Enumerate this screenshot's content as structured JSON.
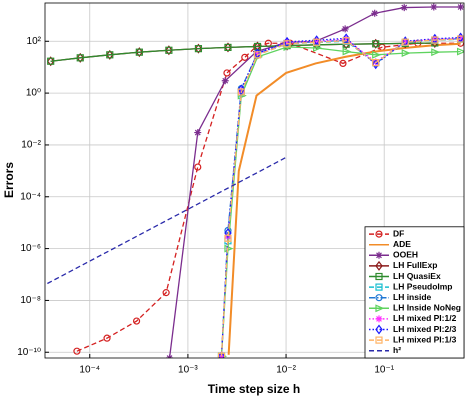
{
  "chart_data": {
    "type": "line",
    "x_label": "Time step size h",
    "y_label": "Errors",
    "x_scale": "log",
    "y_scale": "log",
    "grid": true,
    "legend_position": "lower right",
    "xlim": [
      3.5e-05,
      0.65
    ],
    "ylim": [
      6e-11,
      3000
    ],
    "xticks": [
      {
        "value": 0.0001,
        "label": "10⁻⁴"
      },
      {
        "value": 0.001,
        "label": "10⁻³"
      },
      {
        "value": 0.01,
        "label": "10⁻²"
      },
      {
        "value": 0.1,
        "label": "10⁻¹"
      }
    ],
    "yticks": [
      {
        "value": 1e-10,
        "label": "10⁻¹⁰"
      },
      {
        "value": 1e-08,
        "label": "10⁻⁸"
      },
      {
        "value": 1e-06,
        "label": "10⁻⁶"
      },
      {
        "value": 0.0001,
        "label": "10⁻⁴"
      },
      {
        "value": 0.01,
        "label": "10⁻²"
      },
      {
        "value": 1,
        "label": "10⁰"
      },
      {
        "value": 100,
        "label": "10²"
      }
    ],
    "series": [
      {
        "name": "DF",
        "color": "#d42020",
        "dash": "dashed",
        "marker": "circle",
        "x": [
          7.4e-05,
          0.00015,
          0.0003,
          0.0006,
          0.00126,
          0.0025,
          0.0038,
          0.005,
          0.0066,
          0.011,
          0.038,
          0.095,
          0.22,
          0.6
        ],
        "values": [
          1.1e-10,
          3.5e-10,
          1.6e-09,
          2e-08,
          0.0014,
          6,
          24,
          64,
          84,
          84,
          14,
          59,
          84,
          84
        ]
      },
      {
        "name": "ADE",
        "color": "#f28c28",
        "dash": "solid",
        "marker": "none",
        "x": [
          0.0026,
          0.0033,
          0.005,
          0.01,
          0.02,
          0.04,
          0.08,
          0.16,
          0.32,
          0.6
        ],
        "values": [
          8e-11,
          0.001,
          0.8,
          6,
          14,
          25,
          40,
          55,
          70,
          80
        ]
      },
      {
        "name": "OOEH",
        "color": "#7b2d8e",
        "dash": "solid",
        "marker": "star",
        "x": [
          0.00065,
          0.00126,
          0.0024,
          0.005,
          0.01,
          0.02,
          0.04,
          0.08,
          0.16,
          0.32,
          0.6
        ],
        "values": [
          6e-11,
          0.03,
          3,
          40,
          90,
          100,
          300,
          1200,
          2000,
          2100,
          2100
        ]
      },
      {
        "name": "LH FullExp",
        "color": "#8b1a1a",
        "dash": "solid",
        "marker": "diamond",
        "x": [
          4e-05,
          8e-05,
          0.00016,
          0.00032,
          0.00064,
          0.00128,
          0.00256,
          0.00512,
          0.01024,
          0.02048,
          0.04096,
          0.08192,
          0.16384,
          0.32768
        ],
        "values": [
          17,
          23,
          30,
          38,
          45,
          52,
          58,
          63,
          68,
          73,
          77,
          80,
          83,
          86
        ]
      },
      {
        "name": "LH QuasiEx",
        "color": "#2e8b2e",
        "dash": "solid",
        "marker": "square",
        "x": [
          4e-05,
          8e-05,
          0.00016,
          0.00032,
          0.00064,
          0.00128,
          0.00256,
          0.00512,
          0.01024,
          0.02048,
          0.04096,
          0.08192,
          0.16384,
          0.32768
        ],
        "values": [
          17,
          23,
          30,
          38,
          45,
          52,
          58,
          63,
          68,
          73,
          77,
          80,
          83,
          86
        ]
      },
      {
        "name": "LH PseudoImp",
        "color": "#17becf",
        "dash": "dashed",
        "marker": "square",
        "x": [
          0.0022,
          0.00256,
          0.0035,
          0.00512,
          0.01024,
          0.02048,
          0.04096,
          0.08192,
          0.16384,
          0.32768,
          0.6
        ],
        "values": [
          7e-11,
          2e-06,
          1,
          30,
          80,
          90,
          100,
          15,
          90,
          110,
          120
        ]
      },
      {
        "name": "LH inside",
        "color": "#1f77d4",
        "dash": "dashdot",
        "marker": "circle",
        "x": [
          0.0022,
          0.00256,
          0.0035,
          0.00512,
          0.01024,
          0.02048,
          0.04096,
          0.08192,
          0.16384,
          0.32768,
          0.6
        ],
        "values": [
          7e-11,
          5e-06,
          1.5,
          35,
          85,
          95,
          110,
          14,
          95,
          115,
          125
        ]
      },
      {
        "name": "LH Inside NoNeg",
        "color": "#5fd35f",
        "dash": "solid",
        "marker": "triangle",
        "x": [
          0.0022,
          0.00256,
          0.0035,
          0.00512,
          0.01024,
          0.02048,
          0.04096,
          0.08192,
          0.16384,
          0.32768,
          0.6
        ],
        "values": [
          7e-11,
          1e-06,
          0.8,
          25,
          60,
          55,
          40,
          30,
          35,
          38,
          40
        ]
      },
      {
        "name": "LH mixed PI:1/2",
        "color": "#ff33ff",
        "dash": "dotted",
        "marker": "star",
        "x": [
          0.0022,
          0.00256,
          0.0035,
          0.00512,
          0.01024,
          0.02048,
          0.04096,
          0.08192,
          0.16384,
          0.32768,
          0.6
        ],
        "values": [
          7e-11,
          3e-06,
          1.2,
          32,
          90,
          100,
          120,
          16,
          95,
          120,
          130
        ]
      },
      {
        "name": "LH mixed PI:2/3",
        "color": "#1a1aff",
        "dash": "dotted",
        "marker": "diamond",
        "x": [
          0.0022,
          0.00256,
          0.0035,
          0.00512,
          0.01024,
          0.02048,
          0.04096,
          0.08192,
          0.16384,
          0.32768,
          0.6
        ],
        "values": [
          7e-11,
          4e-06,
          1.4,
          34,
          95,
          110,
          130,
          13,
          100,
          125,
          140
        ]
      },
      {
        "name": "LH mixed PI:1/3",
        "color": "#ffb366",
        "dash": "dashed",
        "marker": "square",
        "x": [
          0.0022,
          0.00256,
          0.0035,
          0.00512,
          0.01024,
          0.02048,
          0.04096,
          0.08192,
          0.16384,
          0.32768,
          0.6
        ],
        "values": [
          7e-11,
          2.5e-06,
          1.1,
          30,
          80,
          92,
          105,
          15,
          92,
          112,
          122
        ]
      },
      {
        "name": "h²",
        "color": "#2a2aaa",
        "dash": "dashed",
        "marker": "none",
        "x": [
          3.7e-05,
          0.01
        ],
        "values": [
          4.5e-08,
          0.0033
        ]
      }
    ]
  }
}
